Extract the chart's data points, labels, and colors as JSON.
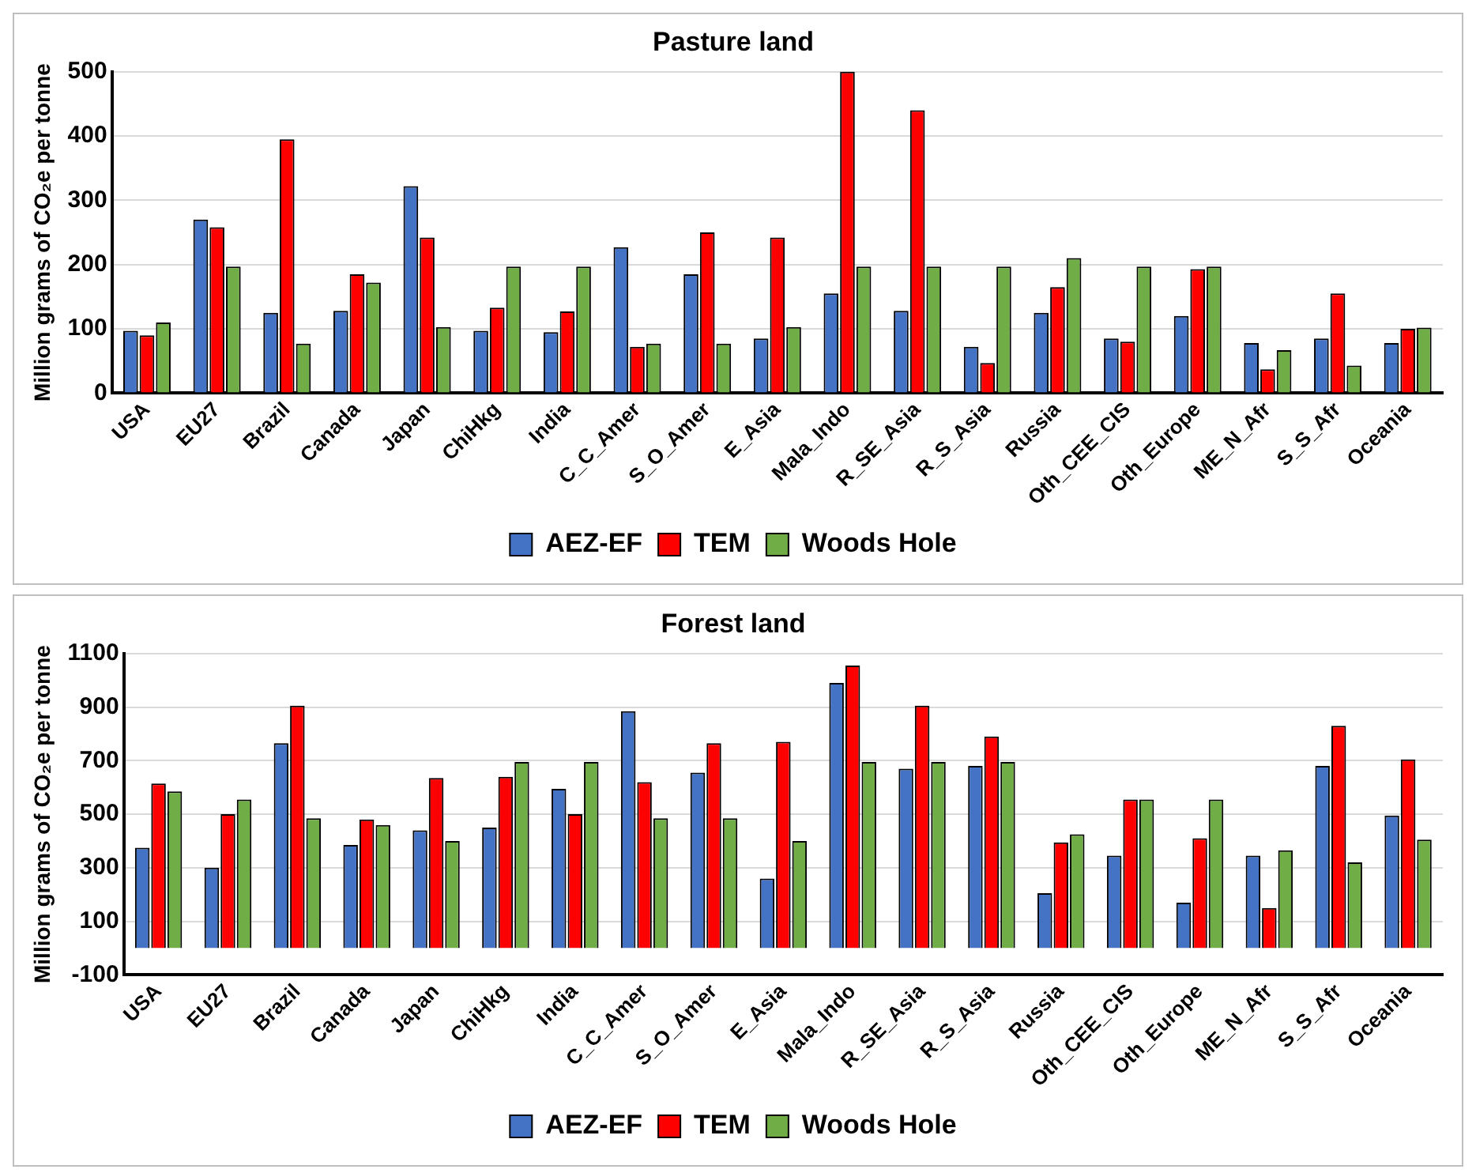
{
  "chart_data": [
    {
      "type": "bar",
      "title": "Pasture land",
      "ylabel": "Million grams of CO₂e per tonne",
      "categories": [
        "USA",
        "EU27",
        "Brazil",
        "Canada",
        "Japan",
        "ChiHkg",
        "India",
        "C_C_Amer",
        "S_O_Amer",
        "E_Asia",
        "Mala_Indo",
        "R_SE_Asia",
        "R_S_Asia",
        "Russia",
        "Oth_CEE_CIS",
        "Oth_Europe",
        "ME_N_Afr",
        "S_S_Afr",
        "Oceania"
      ],
      "series": [
        {
          "name": "AEZ-EF",
          "color": "#4472c4",
          "values": [
            97,
            270,
            125,
            128,
            322,
            97,
            95,
            227,
            185,
            85,
            155,
            128,
            72,
            125,
            85,
            120,
            78,
            85,
            78
          ]
        },
        {
          "name": "TEM",
          "color": "#ff0000",
          "values": [
            90,
            258,
            395,
            185,
            242,
            133,
            127,
            72,
            250,
            242,
            500,
            440,
            47,
            165,
            80,
            193,
            37,
            155,
            100
          ]
        },
        {
          "name": "Woods Hole",
          "color": "#70ad47",
          "values": [
            110,
            197,
            77,
            172,
            103,
            197,
            197,
            77,
            77,
            103,
            197,
            197,
            197,
            210,
            197,
            197,
            67,
            43,
            102
          ]
        }
      ],
      "ylim": [
        0,
        500
      ],
      "yticks": [
        0,
        100,
        200,
        300,
        400,
        500
      ],
      "grid": "y",
      "legend": "bottom"
    },
    {
      "type": "bar",
      "title": "Forest land",
      "ylabel": "Million grams of CO₂e per tonne",
      "categories": [
        "USA",
        "EU27",
        "Brazil",
        "Canada",
        "Japan",
        "ChiHkg",
        "India",
        "C_C_Amer",
        "S_O_Amer",
        "E_Asia",
        "Mala_Indo",
        "R_SE_Asia",
        "R_S_Asia",
        "Russia",
        "Oth_CEE_CIS",
        "Oth_Europe",
        "ME_N_Afr",
        "S_S_Afr",
        "Oceania"
      ],
      "series": [
        {
          "name": "AEZ-EF",
          "color": "#4472c4",
          "values": [
            375,
            300,
            765,
            385,
            440,
            450,
            595,
            885,
            655,
            260,
            990,
            670,
            680,
            205,
            345,
            170,
            345,
            680,
            495
          ]
        },
        {
          "name": "TEM",
          "color": "#ff0000",
          "values": [
            615,
            500,
            905,
            480,
            635,
            640,
            500,
            620,
            765,
            770,
            1055,
            905,
            790,
            395,
            555,
            410,
            150,
            830,
            705
          ]
        },
        {
          "name": "Woods Hole",
          "color": "#70ad47",
          "values": [
            585,
            555,
            485,
            460,
            400,
            695,
            695,
            485,
            485,
            400,
            695,
            695,
            695,
            425,
            555,
            555,
            365,
            320,
            405
          ]
        }
      ],
      "ylim": [
        -100,
        1100
      ],
      "yticks": [
        -100,
        100,
        300,
        500,
        700,
        900,
        1100
      ],
      "grid": "y",
      "legend": "bottom"
    }
  ]
}
